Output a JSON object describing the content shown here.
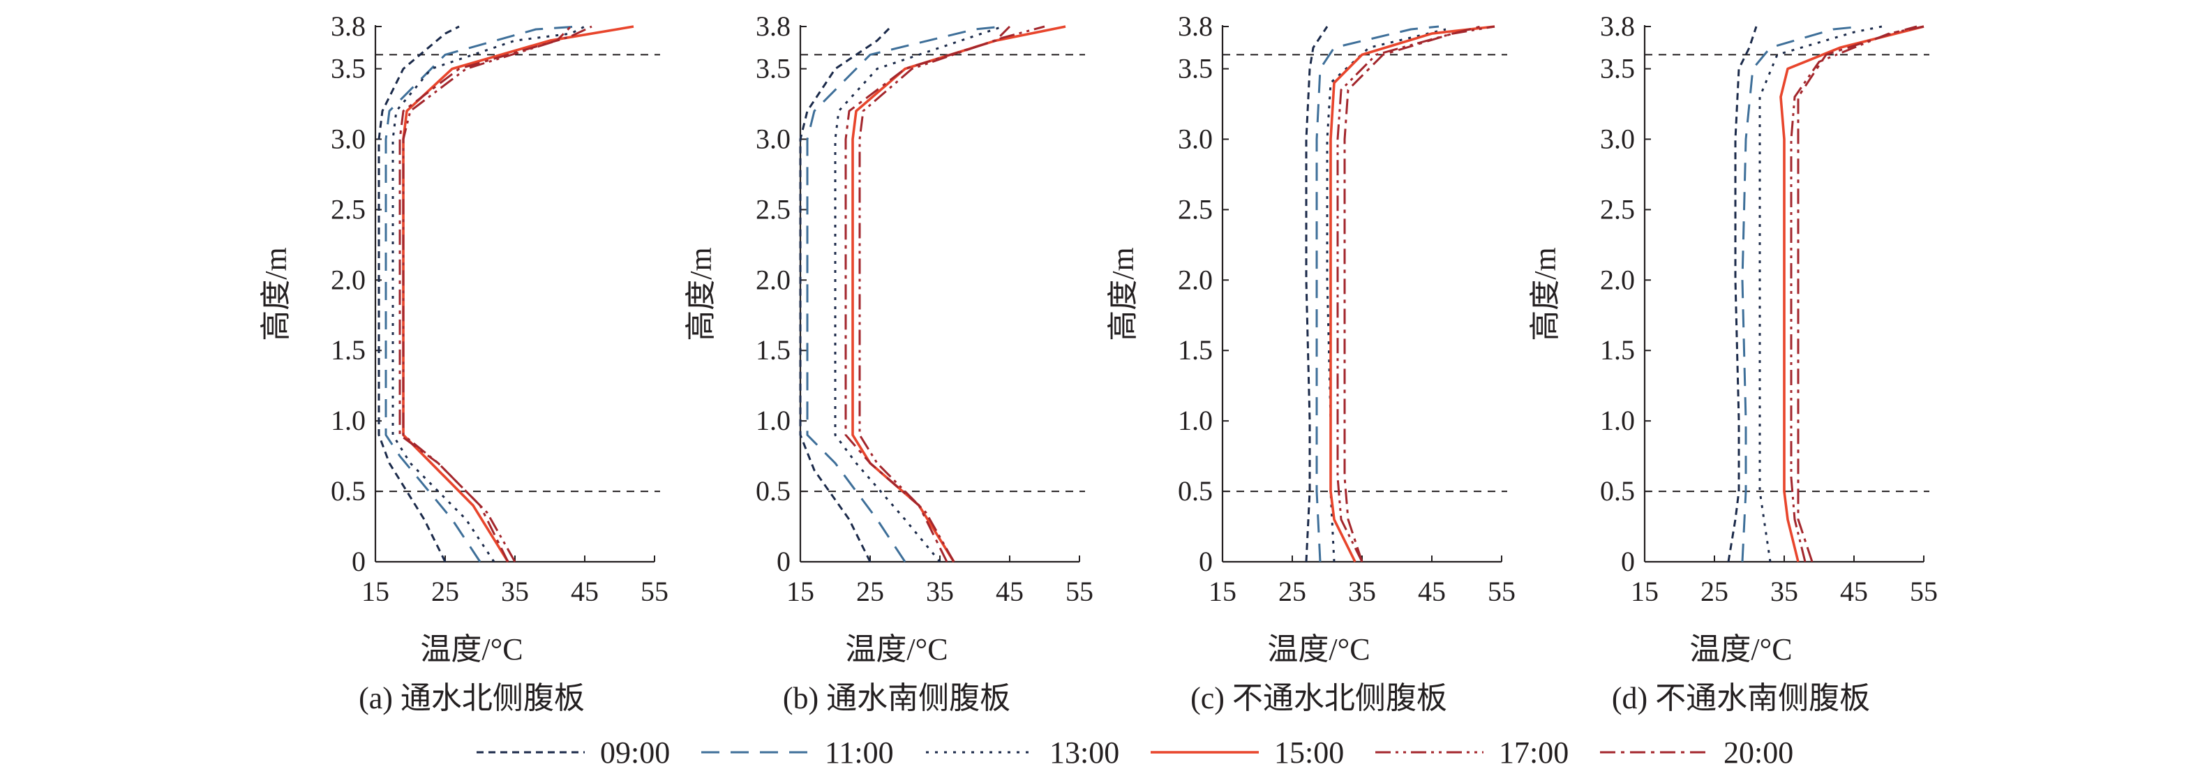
{
  "chart_data": [
    {
      "type": "line",
      "caption": "(a) 通水北侧腹板",
      "xlabel": "温度/°C",
      "ylabel": "高度/m",
      "xlim": [
        15,
        55
      ],
      "ylim": [
        0,
        3.8
      ],
      "xticks": [
        "15",
        "25",
        "35",
        "45",
        "55"
      ],
      "yticks": [
        "0",
        "0.5",
        "1.0",
        "1.5",
        "2.0",
        "2.5",
        "3.0",
        "3.5",
        "3.8"
      ],
      "reference_lines_y": [
        0.5,
        3.6
      ],
      "series": [
        {
          "name": "09:00",
          "points": [
            [
              25,
              0
            ],
            [
              22,
              0.3
            ],
            [
              17,
              0.7
            ],
            [
              15.5,
              0.9
            ],
            [
              15.5,
              1.0
            ],
            [
              15.5,
              3.0
            ],
            [
              16,
              3.2
            ],
            [
              19,
              3.5
            ],
            [
              25,
              3.75
            ],
            [
              27,
              3.8
            ]
          ]
        },
        {
          "name": "11:00",
          "points": [
            [
              30,
              0
            ],
            [
              26,
              0.3
            ],
            [
              18.5,
              0.75
            ],
            [
              16.5,
              0.9
            ],
            [
              16.5,
              1.0
            ],
            [
              16.5,
              3.0
            ],
            [
              17,
              3.2
            ],
            [
              25,
              3.6
            ],
            [
              38,
              3.78
            ],
            [
              44,
              3.8
            ]
          ]
        },
        {
          "name": "13:00",
          "points": [
            [
              32,
              0
            ],
            [
              28,
              0.3
            ],
            [
              20,
              0.7
            ],
            [
              17.5,
              0.9
            ],
            [
              17.5,
              1.0
            ],
            [
              17.5,
              3.0
            ],
            [
              18,
              3.2
            ],
            [
              23,
              3.5
            ],
            [
              35,
              3.7
            ],
            [
              43,
              3.75
            ],
            [
              45,
              3.8
            ]
          ]
        },
        {
          "name": "15:00",
          "points": [
            [
              34,
              0
            ],
            [
              29,
              0.4
            ],
            [
              23,
              0.7
            ],
            [
              19,
              0.9
            ],
            [
              19,
              1.0
            ],
            [
              19,
              3.0
            ],
            [
              19.5,
              3.2
            ],
            [
              26,
              3.5
            ],
            [
              40,
              3.7
            ],
            [
              52,
              3.8
            ]
          ]
        },
        {
          "name": "17:00",
          "points": [
            [
              35,
              0
            ],
            [
              31,
              0.35
            ],
            [
              24,
              0.7
            ],
            [
              19,
              0.9
            ],
            [
              19,
              1.0
            ],
            [
              19,
              3.0
            ],
            [
              20,
              3.2
            ],
            [
              28,
              3.5
            ],
            [
              43,
              3.73
            ],
            [
              46,
              3.8
            ]
          ]
        },
        {
          "name": "20:00",
          "points": [
            [
              34,
              0
            ],
            [
              30,
              0.4
            ],
            [
              24,
              0.7
            ],
            [
              18.5,
              0.9
            ],
            [
              18.5,
              1.0
            ],
            [
              18.5,
              3.0
            ],
            [
              19,
              3.2
            ],
            [
              27,
              3.5
            ],
            [
              41,
              3.7
            ],
            [
              43,
              3.8
            ]
          ]
        }
      ]
    },
    {
      "type": "line",
      "caption": "(b) 通水南侧腹板",
      "xlabel": "温度/°C",
      "ylabel": "高度/m",
      "xlim": [
        15,
        55
      ],
      "ylim": [
        0,
        3.8
      ],
      "xticks": [
        "15",
        "25",
        "35",
        "45",
        "55"
      ],
      "yticks": [
        "0",
        "0.5",
        "1.0",
        "1.5",
        "2.0",
        "2.5",
        "3.0",
        "3.5",
        "3.8"
      ],
      "reference_lines_y": [
        0.5,
        3.6
      ],
      "series": [
        {
          "name": "09:00",
          "points": [
            [
              25,
              0
            ],
            [
              22,
              0.3
            ],
            [
              17,
              0.65
            ],
            [
              15,
              0.9
            ],
            [
              15,
              1.0
            ],
            [
              15,
              3.0
            ],
            [
              16,
              3.2
            ],
            [
              20,
              3.5
            ],
            [
              26,
              3.7
            ],
            [
              28,
              3.8
            ]
          ]
        },
        {
          "name": "11:00",
          "points": [
            [
              30,
              0
            ],
            [
              26,
              0.3
            ],
            [
              20,
              0.7
            ],
            [
              16,
              0.9
            ],
            [
              16,
              1.0
            ],
            [
              16,
              3.0
            ],
            [
              17,
              3.2
            ],
            [
              25,
              3.6
            ],
            [
              40,
              3.78
            ],
            [
              44,
              3.8
            ]
          ]
        },
        {
          "name": "13:00",
          "points": [
            [
              35,
              0
            ],
            [
              30,
              0.3
            ],
            [
              23,
              0.7
            ],
            [
              20,
              0.9
            ],
            [
              20,
              1.0
            ],
            [
              20,
              3.0
            ],
            [
              20.5,
              3.2
            ],
            [
              26,
              3.5
            ],
            [
              38,
              3.7
            ],
            [
              44,
              3.8
            ]
          ]
        },
        {
          "name": "15:00",
          "points": [
            [
              37,
              0
            ],
            [
              32,
              0.4
            ],
            [
              25,
              0.7
            ],
            [
              22.5,
              0.9
            ],
            [
              22.5,
              1.0
            ],
            [
              22.5,
              3.0
            ],
            [
              23,
              3.2
            ],
            [
              30,
              3.5
            ],
            [
              43,
              3.7
            ],
            [
              53,
              3.8
            ]
          ]
        },
        {
          "name": "17:00",
          "points": [
            [
              37,
              0
            ],
            [
              33,
              0.35
            ],
            [
              26,
              0.7
            ],
            [
              23.5,
              0.9
            ],
            [
              23.5,
              1.0
            ],
            [
              23.5,
              3.0
            ],
            [
              24,
              3.2
            ],
            [
              31,
              3.5
            ],
            [
              44,
              3.72
            ],
            [
              50,
              3.8
            ]
          ]
        },
        {
          "name": "20:00",
          "points": [
            [
              36,
              0
            ],
            [
              32,
              0.4
            ],
            [
              25,
              0.7
            ],
            [
              21.5,
              0.9
            ],
            [
              21.5,
              1.0
            ],
            [
              21.5,
              3.0
            ],
            [
              22,
              3.2
            ],
            [
              30,
              3.5
            ],
            [
              43,
              3.7
            ],
            [
              45,
              3.8
            ]
          ]
        }
      ]
    },
    {
      "type": "line",
      "caption": "(c) 不通水北侧腹板",
      "xlabel": "温度/°C",
      "ylabel": "高度/m",
      "xlim": [
        15,
        55
      ],
      "ylim": [
        0,
        3.8
      ],
      "xticks": [
        "15",
        "25",
        "35",
        "45",
        "55"
      ],
      "yticks": [
        "0",
        "0.5",
        "1.0",
        "1.5",
        "2.0",
        "2.5",
        "3.0",
        "3.5",
        "3.8"
      ],
      "reference_lines_y": [
        0.5,
        3.6
      ],
      "series": [
        {
          "name": "09:00",
          "points": [
            [
              27,
              0
            ],
            [
              27.5,
              0.5
            ],
            [
              27.5,
              1.0
            ],
            [
              27,
              2.0
            ],
            [
              27,
              3.0
            ],
            [
              27.5,
              3.5
            ],
            [
              28,
              3.65
            ],
            [
              30,
              3.8
            ]
          ]
        },
        {
          "name": "11:00",
          "points": [
            [
              29,
              0
            ],
            [
              28.5,
              0.5
            ],
            [
              28.5,
              1.0
            ],
            [
              28.5,
              2.0
            ],
            [
              28.5,
              3.0
            ],
            [
              29,
              3.5
            ],
            [
              31,
              3.65
            ],
            [
              42,
              3.78
            ],
            [
              46,
              3.8
            ]
          ]
        },
        {
          "name": "13:00",
          "points": [
            [
              31,
              0
            ],
            [
              30.5,
              0.5
            ],
            [
              30.5,
              1.0
            ],
            [
              30,
              2.0
            ],
            [
              30,
              3.0
            ],
            [
              30.5,
              3.4
            ],
            [
              36,
              3.65
            ],
            [
              47,
              3.78
            ]
          ]
        },
        {
          "name": "15:00",
          "points": [
            [
              34,
              0
            ],
            [
              31,
              0.3
            ],
            [
              30.5,
              0.5
            ],
            [
              30.5,
              1.0
            ],
            [
              30.5,
              3.0
            ],
            [
              31,
              3.4
            ],
            [
              35,
              3.6
            ],
            [
              45,
              3.75
            ],
            [
              54,
              3.8
            ]
          ]
        },
        {
          "name": "17:00",
          "points": [
            [
              35,
              0
            ],
            [
              32,
              0.3
            ],
            [
              31.5,
              0.6
            ],
            [
              31.5,
              1.0
            ],
            [
              31.5,
              3.0
            ],
            [
              32,
              3.35
            ],
            [
              37,
              3.6
            ],
            [
              48,
              3.75
            ],
            [
              54,
              3.8
            ]
          ]
        },
        {
          "name": "20:00",
          "points": [
            [
              35,
              0
            ],
            [
              33,
              0.3
            ],
            [
              32.5,
              0.6
            ],
            [
              32.5,
              1.0
            ],
            [
              32.5,
              3.0
            ],
            [
              33,
              3.35
            ],
            [
              38,
              3.6
            ],
            [
              48,
              3.75
            ],
            [
              52,
              3.8
            ]
          ]
        }
      ]
    },
    {
      "type": "line",
      "caption": "(d) 不通水南侧腹板",
      "xlabel": "温度/°C",
      "ylabel": "高度/m",
      "xlim": [
        15,
        55
      ],
      "ylim": [
        0,
        3.8
      ],
      "xticks": [
        "15",
        "25",
        "35",
        "45",
        "55"
      ],
      "yticks": [
        "0",
        "0.5",
        "1.0",
        "1.5",
        "2.0",
        "2.5",
        "3.0",
        "3.5",
        "3.8"
      ],
      "reference_lines_y": [
        0.5,
        3.6
      ],
      "series": [
        {
          "name": "09:00",
          "points": [
            [
              27,
              0
            ],
            [
              28,
              0.3
            ],
            [
              28.5,
              0.5
            ],
            [
              28.5,
              1.0
            ],
            [
              28,
              2.0
            ],
            [
              28,
              3.0
            ],
            [
              28.5,
              3.5
            ],
            [
              30,
              3.65
            ],
            [
              31,
              3.8
            ]
          ]
        },
        {
          "name": "11:00",
          "points": [
            [
              29,
              0
            ],
            [
              29.5,
              0.5
            ],
            [
              29.5,
              1.0
            ],
            [
              29,
              2.0
            ],
            [
              29.5,
              3.0
            ],
            [
              30.5,
              3.5
            ],
            [
              33,
              3.65
            ],
            [
              42,
              3.78
            ],
            [
              46,
              3.8
            ]
          ]
        },
        {
          "name": "13:00",
          "points": [
            [
              33,
              0
            ],
            [
              31.5,
              0.5
            ],
            [
              31.5,
              1.0
            ],
            [
              31.5,
              2.0
            ],
            [
              31.5,
              3.0
            ],
            [
              31.5,
              3.3
            ],
            [
              34,
              3.6
            ],
            [
              45,
              3.76
            ],
            [
              49,
              3.8
            ]
          ]
        },
        {
          "name": "15:00",
          "points": [
            [
              37,
              0
            ],
            [
              35.5,
              0.3
            ],
            [
              35,
              0.5
            ],
            [
              35,
              1.0
            ],
            [
              35,
              2.0
            ],
            [
              35,
              3.0
            ],
            [
              34.5,
              3.3
            ],
            [
              35.5,
              3.5
            ],
            [
              43,
              3.65
            ],
            [
              55,
              3.8
            ]
          ]
        },
        {
          "name": "17:00",
          "points": [
            [
              38,
              0
            ],
            [
              36.5,
              0.3
            ],
            [
              36,
              0.6
            ],
            [
              36,
              1.0
            ],
            [
              36,
              2.0
            ],
            [
              36,
              3.0
            ],
            [
              36.5,
              3.3
            ],
            [
              40,
              3.55
            ],
            [
              50,
              3.75
            ],
            [
              55,
              3.8
            ]
          ]
        },
        {
          "name": "20:00",
          "points": [
            [
              39,
              0
            ],
            [
              37,
              0.3
            ],
            [
              37,
              0.6
            ],
            [
              37,
              1.0
            ],
            [
              37,
              2.0
            ],
            [
              37,
              3.0
            ],
            [
              37,
              3.3
            ],
            [
              41,
              3.6
            ],
            [
              51,
              3.76
            ],
            [
              54,
              3.8
            ]
          ]
        }
      ]
    }
  ],
  "legend": [
    {
      "label": "09:00",
      "color": "#1b2a4a",
      "dash": "short-dash"
    },
    {
      "label": "11:00",
      "color": "#3e6f99",
      "dash": "long-dash"
    },
    {
      "label": "13:00",
      "color": "#1b2a4a",
      "dash": "dotted"
    },
    {
      "label": "15:00",
      "color": "#e8452c",
      "dash": "solid"
    },
    {
      "label": "17:00",
      "color": "#a3262c",
      "dash": "dash-dot-dot"
    },
    {
      "label": "20:00",
      "color": "#a3262c",
      "dash": "dash-dot"
    }
  ]
}
